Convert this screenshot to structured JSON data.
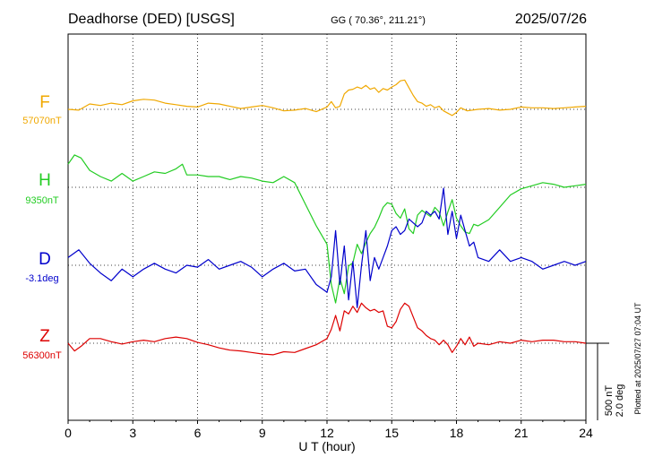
{
  "header": {
    "station": "Deadhorse (DED)  [USGS]",
    "coords": "GG ( 70.36°, 211.21°)",
    "date": "2025/07/26"
  },
  "plotted_note": "Plotted at 2025/07/27 07:04 UT",
  "scale_bar": {
    "nt_label": "500 nT",
    "deg_label": "2.0 deg"
  },
  "colors": {
    "F": "#f0a800",
    "H": "#22cc22",
    "D": "#0000cc",
    "Z": "#dd0000",
    "axis": "#000000",
    "grid": "#000000"
  },
  "chart_data": {
    "type": "line",
    "xlabel": "U T (hour)",
    "xlim": [
      0,
      24
    ],
    "xticks": [
      "0",
      "3",
      "6",
      "9",
      "12",
      "15",
      "18",
      "21",
      "24"
    ],
    "grid": true,
    "series": [
      {
        "name": "F",
        "baseline_label": "57070nT",
        "color": "#f0a800",
        "scale": "nT",
        "x": [
          0,
          0.5,
          1,
          1.5,
          2,
          2.5,
          3,
          3.5,
          4,
          4.5,
          5,
          5.5,
          6,
          6.5,
          7,
          7.5,
          8,
          8.5,
          9,
          9.5,
          10,
          10.5,
          11,
          11.5,
          12,
          12.2,
          12.4,
          12.6,
          12.8,
          13,
          13.2,
          13.4,
          13.6,
          13.8,
          14,
          14.2,
          14.4,
          14.6,
          14.8,
          15,
          15.2,
          15.4,
          15.6,
          15.8,
          16,
          16.2,
          16.4,
          16.6,
          16.8,
          17,
          17.2,
          17.4,
          17.6,
          17.8,
          18,
          18.2,
          18.5,
          19,
          19.5,
          20,
          20.5,
          21,
          21.5,
          22,
          22.5,
          23,
          23.5,
          24
        ],
        "y": [
          57070,
          57065,
          57105,
          57095,
          57110,
          57100,
          57125,
          57135,
          57130,
          57110,
          57100,
          57090,
          57085,
          57110,
          57105,
          57090,
          57075,
          57085,
          57095,
          57080,
          57060,
          57065,
          57075,
          57055,
          57085,
          57120,
          57080,
          57090,
          57170,
          57195,
          57200,
          57215,
          57205,
          57225,
          57200,
          57210,
          57180,
          57205,
          57195,
          57215,
          57230,
          57255,
          57260,
          57210,
          57160,
          57120,
          57110,
          57090,
          57100,
          57080,
          57090,
          57060,
          57045,
          57030,
          57050,
          57080,
          57060,
          57070,
          57075,
          57065,
          57070,
          57085,
          57080,
          57080,
          57075,
          57080,
          57085,
          57090
        ]
      },
      {
        "name": "H",
        "baseline_label": "9350nT",
        "color": "#22cc22",
        "scale": "nT",
        "x": [
          0,
          0.3,
          0.6,
          1,
          1.5,
          2,
          2.5,
          3,
          3.5,
          4,
          4.5,
          5,
          5.3,
          5.5,
          6,
          6.5,
          7,
          7.5,
          8,
          8.5,
          9,
          9.5,
          10,
          10.5,
          11,
          11.5,
          12,
          12.2,
          12.4,
          12.6,
          12.8,
          13,
          13.2,
          13.4,
          13.6,
          13.8,
          14,
          14.2,
          14.4,
          14.6,
          14.8,
          15,
          15.2,
          15.4,
          15.6,
          15.8,
          16,
          16.2,
          16.4,
          16.6,
          16.8,
          17,
          17.2,
          17.4,
          17.6,
          17.8,
          18,
          18.2,
          18.4,
          18.6,
          18.8,
          19,
          19.5,
          20,
          20.5,
          21,
          21.5,
          22,
          22.5,
          23,
          23.5,
          24
        ],
        "y": [
          9500,
          9560,
          9540,
          9460,
          9420,
          9390,
          9440,
          9390,
          9420,
          9450,
          9440,
          9470,
          9500,
          9430,
          9430,
          9420,
          9420,
          9400,
          9420,
          9410,
          9390,
          9380,
          9420,
          9380,
          9240,
          9100,
          8980,
          8720,
          8600,
          8760,
          8660,
          8840,
          8860,
          8980,
          8920,
          8990,
          9050,
          9090,
          9150,
          9220,
          9250,
          9240,
          9180,
          9150,
          9210,
          9080,
          9050,
          9170,
          9200,
          9180,
          9160,
          9220,
          9190,
          9100,
          9190,
          9270,
          9150,
          9100,
          9060,
          9050,
          9110,
          9100,
          9140,
          9220,
          9300,
          9340,
          9360,
          9380,
          9370,
          9350,
          9360,
          9370
        ]
      },
      {
        "name": "D",
        "baseline_label": "-3.1deg",
        "color": "#0000cc",
        "scale": "deg",
        "x": [
          0,
          0.5,
          1,
          1.5,
          2,
          2.5,
          3,
          3.5,
          4,
          4.5,
          5,
          5.5,
          6,
          6.5,
          7,
          7.5,
          8,
          8.5,
          9,
          9.5,
          10,
          10.5,
          11,
          11.5,
          12,
          12.2,
          12.4,
          12.6,
          12.8,
          13,
          13.2,
          13.4,
          13.6,
          13.8,
          14,
          14.2,
          14.4,
          14.6,
          14.8,
          15,
          15.2,
          15.4,
          15.6,
          15.8,
          16,
          16.2,
          16.4,
          16.6,
          16.8,
          17,
          17.2,
          17.4,
          17.6,
          17.8,
          18,
          18.2,
          18.4,
          18.6,
          18.8,
          19,
          19.5,
          20,
          20.5,
          21,
          21.5,
          22,
          22.5,
          23,
          23.5,
          24
        ],
        "y": [
          -2.9,
          -2.7,
          -3.05,
          -3.3,
          -3.5,
          -3.2,
          -3.4,
          -3.2,
          -3.05,
          -3.2,
          -3.3,
          -3.1,
          -3.15,
          -2.95,
          -3.2,
          -3.1,
          -3.0,
          -3.15,
          -3.4,
          -3.2,
          -3.05,
          -3.25,
          -3.2,
          -3.6,
          -3.8,
          -3.4,
          -2.2,
          -3.6,
          -2.6,
          -4.0,
          -3.0,
          -4.2,
          -3.1,
          -2.2,
          -3.5,
          -2.9,
          -3.2,
          -2.9,
          -2.6,
          -2.2,
          -2.1,
          -2.3,
          -2.2,
          -1.9,
          -2.0,
          -2.1,
          -2.0,
          -1.7,
          -1.8,
          -1.7,
          -1.9,
          -1.1,
          -2.3,
          -1.7,
          -2.4,
          -1.8,
          -2.2,
          -2.6,
          -2.5,
          -2.9,
          -3.0,
          -2.7,
          -3.0,
          -2.9,
          -3.0,
          -3.2,
          -3.1,
          -3.0,
          -3.1,
          -3.0
        ]
      },
      {
        "name": "Z",
        "baseline_label": "56300nT",
        "color": "#dd0000",
        "scale": "nT",
        "x": [
          0,
          0.3,
          0.6,
          1,
          1.5,
          2,
          2.5,
          3,
          3.5,
          4,
          4.5,
          5,
          5.5,
          6,
          6.5,
          7,
          7.5,
          8,
          8.5,
          9,
          9.5,
          10,
          10.5,
          11,
          11.5,
          12,
          12.2,
          12.4,
          12.6,
          12.8,
          13,
          13.2,
          13.4,
          13.6,
          13.8,
          14,
          14.2,
          14.4,
          14.6,
          14.8,
          15,
          15.2,
          15.4,
          15.6,
          15.8,
          16,
          16.2,
          16.4,
          16.6,
          16.8,
          17,
          17.2,
          17.4,
          17.6,
          17.8,
          18,
          18.2,
          18.4,
          18.6,
          18.8,
          19,
          19.5,
          20,
          20.5,
          21,
          21.5,
          22,
          22.5,
          23,
          23.5,
          24
        ],
        "y": [
          56300,
          56250,
          56280,
          56330,
          56330,
          56310,
          56295,
          56310,
          56320,
          56310,
          56330,
          56340,
          56330,
          56305,
          56290,
          56270,
          56255,
          56250,
          56240,
          56230,
          56225,
          56245,
          56240,
          56265,
          56290,
          56330,
          56390,
          56480,
          56380,
          56510,
          56490,
          56540,
          56500,
          56560,
          56530,
          56510,
          56520,
          56500,
          56510,
          56410,
          56400,
          56440,
          56520,
          56560,
          56540,
          56470,
          56400,
          56380,
          56350,
          56330,
          56320,
          56290,
          56320,
          56290,
          56240,
          56280,
          56330,
          56290,
          56340,
          56280,
          56300,
          56290,
          56310,
          56300,
          56320,
          56310,
          56320,
          56320,
          56310,
          56310,
          56300
        ]
      }
    ]
  }
}
